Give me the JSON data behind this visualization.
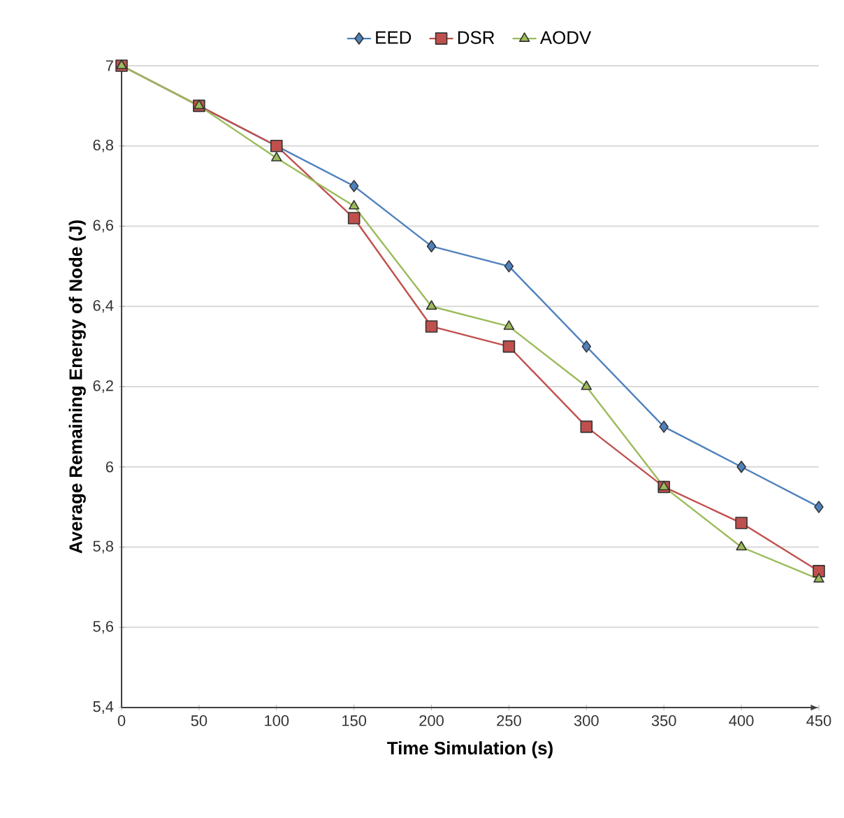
{
  "chart_data": {
    "type": "line",
    "xlabel": "Time Simulation (s)",
    "ylabel": "Average Remaining Energy of Node (J)",
    "x": [
      0,
      50,
      100,
      150,
      200,
      250,
      300,
      350,
      400,
      450
    ],
    "series": [
      {
        "name": "EED",
        "color": "#4f81bd",
        "marker": "diamond",
        "values": [
          7,
          6.9,
          null,
          6.7,
          6.55,
          6.5,
          6.3,
          6.1,
          6.0,
          5.9
        ]
      },
      {
        "name": "DSR",
        "color": "#c0504d",
        "marker": "square",
        "values": [
          7,
          6.9,
          6.8,
          6.62,
          6.35,
          6.3,
          6.1,
          5.95,
          5.86,
          5.74
        ]
      },
      {
        "name": "AODV",
        "color": "#9bbb59",
        "marker": "triangle",
        "values": [
          7,
          6.9,
          6.77,
          6.65,
          6.4,
          6.35,
          6.2,
          5.95,
          5.8,
          5.72
        ]
      }
    ],
    "xlim": [
      0,
      450
    ],
    "xticks": [
      0,
      50,
      100,
      150,
      200,
      250,
      300,
      350,
      400,
      450
    ],
    "ylim": [
      5.4,
      7
    ],
    "yticks": [
      {
        "value": 5.4,
        "label": "5,4"
      },
      {
        "value": 5.6,
        "label": "5,6"
      },
      {
        "value": 5.8,
        "label": "5,8"
      },
      {
        "value": 6,
        "label": "6"
      },
      {
        "value": 6.2,
        "label": "6,2"
      },
      {
        "value": 6.4,
        "label": "6,4"
      },
      {
        "value": 6.6,
        "label": "6,6"
      },
      {
        "value": 6.8,
        "label": "6,8"
      },
      {
        "value": 7,
        "label": "7"
      }
    ],
    "grid": "y",
    "legend": "top",
    "line_style": "solid"
  }
}
